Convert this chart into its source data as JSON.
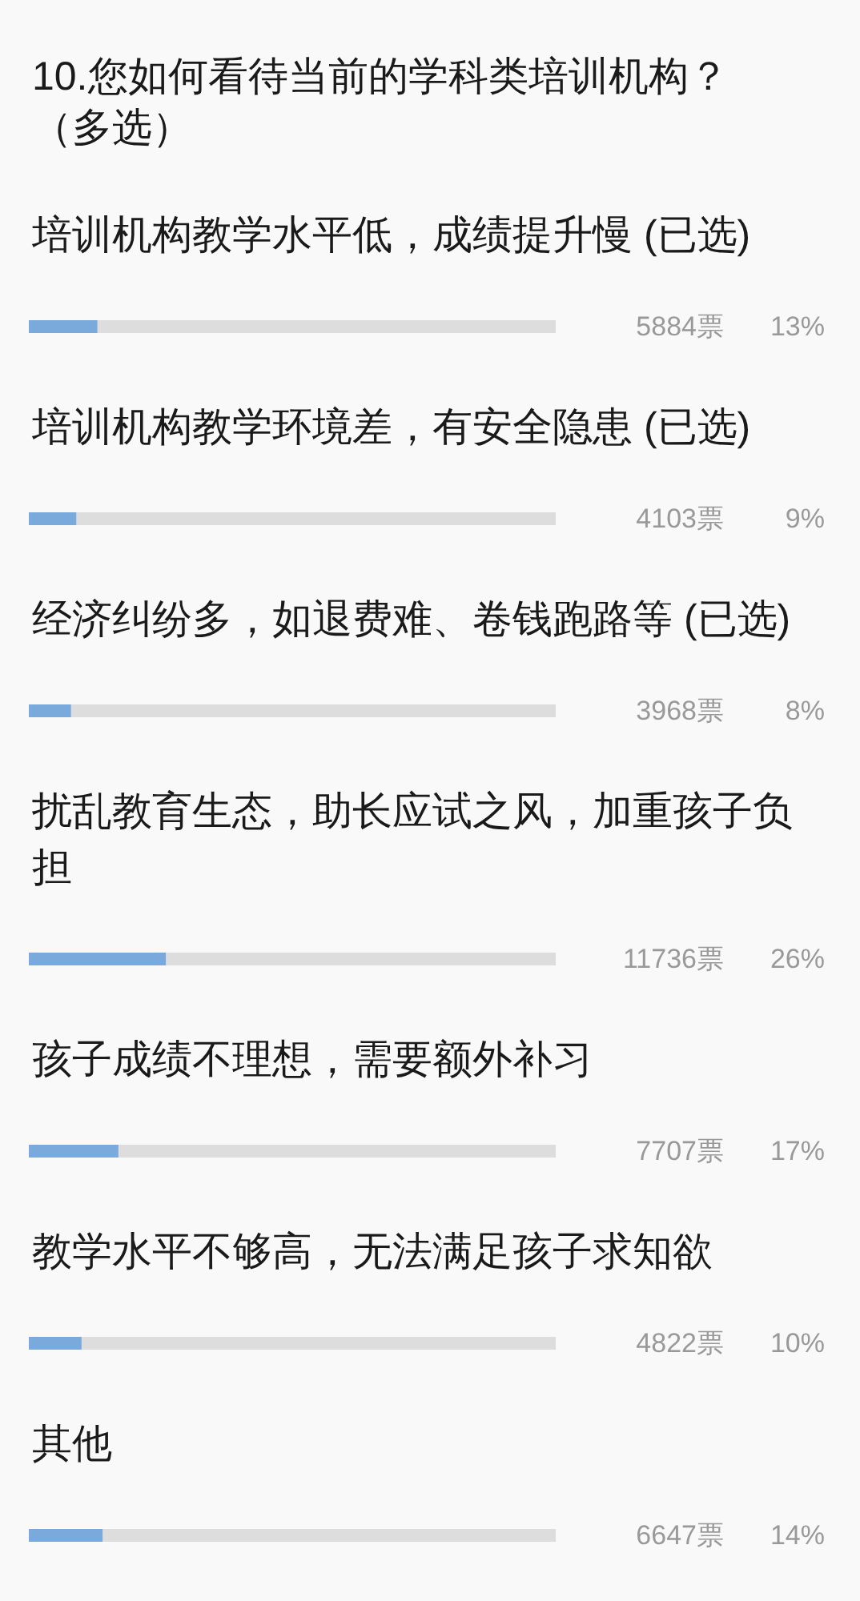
{
  "chart_data": {
    "type": "bar",
    "orientation": "horizontal",
    "title": "10.您如何看待当前的学科类培训机构？（多选）",
    "categories": [
      "培训机构教学水平低，成绩提升慢 (已选)",
      "培训机构教学环境差，有安全隐患 (已选)",
      "经济纠纷多，如退费难、卷钱跑路等 (已选)",
      "扰乱教育生态，助长应试之风，加重孩子负担",
      "孩子成绩不理想，需要额外补习",
      "教学水平不够高，无法满足孩子求知欲",
      "其他"
    ],
    "values": [
      13,
      9,
      8,
      26,
      17,
      10,
      14
    ],
    "value_labels": [
      "13%",
      "9%",
      "8%",
      "26%",
      "17%",
      "10%",
      "14%"
    ],
    "annotations": [
      "5884票",
      "4103票",
      "3968票",
      "11736票",
      "7707票",
      "4822票",
      "6647票"
    ],
    "color": "#7aaadc",
    "xlim": [
      0,
      100
    ],
    "tick_labels": "y"
  }
}
